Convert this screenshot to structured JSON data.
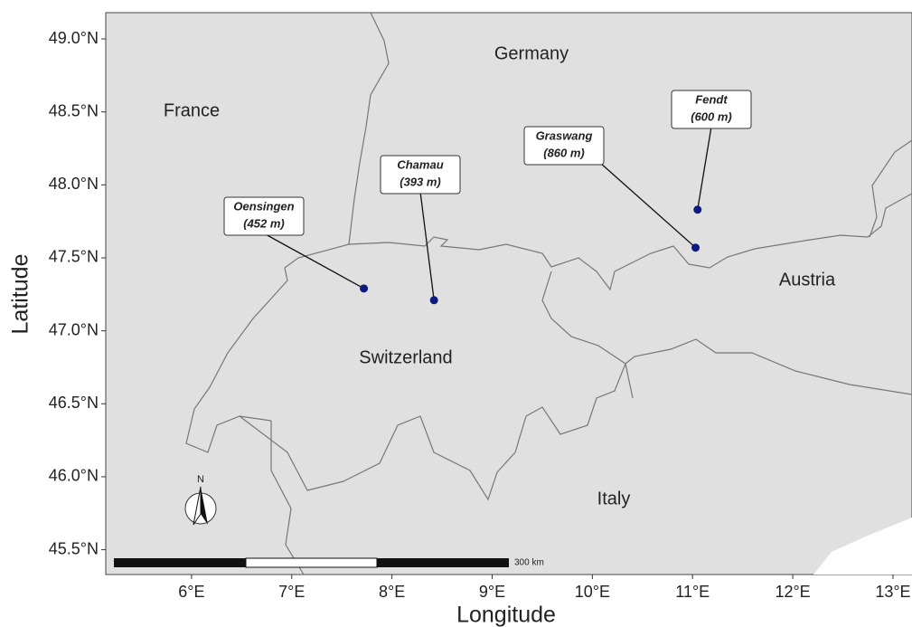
{
  "map": {
    "x_label": "Longitude",
    "y_label": "Latitude",
    "xlim": [
      5.144,
      13.19
    ],
    "ylim": [
      45.33,
      49.18
    ],
    "xticks": [
      {
        "value": 6,
        "label": "6°E"
      },
      {
        "value": 7,
        "label": "7°E"
      },
      {
        "value": 8,
        "label": "8°E"
      },
      {
        "value": 9,
        "label": "9°E"
      },
      {
        "value": 10,
        "label": "10°E"
      },
      {
        "value": 11,
        "label": "11°E"
      },
      {
        "value": 12,
        "label": "12°E"
      },
      {
        "value": 13,
        "label": "13°E"
      }
    ],
    "yticks": [
      {
        "value": 45.5,
        "label": "45.5°N"
      },
      {
        "value": 46,
        "label": "46.0°N"
      },
      {
        "value": 46.5,
        "label": "46.5°N"
      },
      {
        "value": 47,
        "label": "47.0°N"
      },
      {
        "value": 47.5,
        "label": "47.5°N"
      },
      {
        "value": 48,
        "label": "48.0°N"
      },
      {
        "value": 48.5,
        "label": "48.5°N"
      },
      {
        "value": 49,
        "label": "49.0°N"
      }
    ],
    "countries": [
      "Germany",
      "France",
      "Austria",
      "Switzerland",
      "Italy"
    ],
    "sites": [
      {
        "name": "Oensingen",
        "elevation": "(452 m)",
        "lon": 7.72,
        "lat": 47.29
      },
      {
        "name": "Chamau",
        "elevation": "(393 m)",
        "lon": 8.42,
        "lat": 47.21
      },
      {
        "name": "Graswang",
        "elevation": "(860 m)",
        "lon": 11.03,
        "lat": 47.57
      },
      {
        "name": "Fendt",
        "elevation": "(600 m)",
        "lon": 11.05,
        "lat": 47.83
      }
    ],
    "point_color": "#0d1a80",
    "scale_label": "300 km",
    "north_label": "N"
  }
}
